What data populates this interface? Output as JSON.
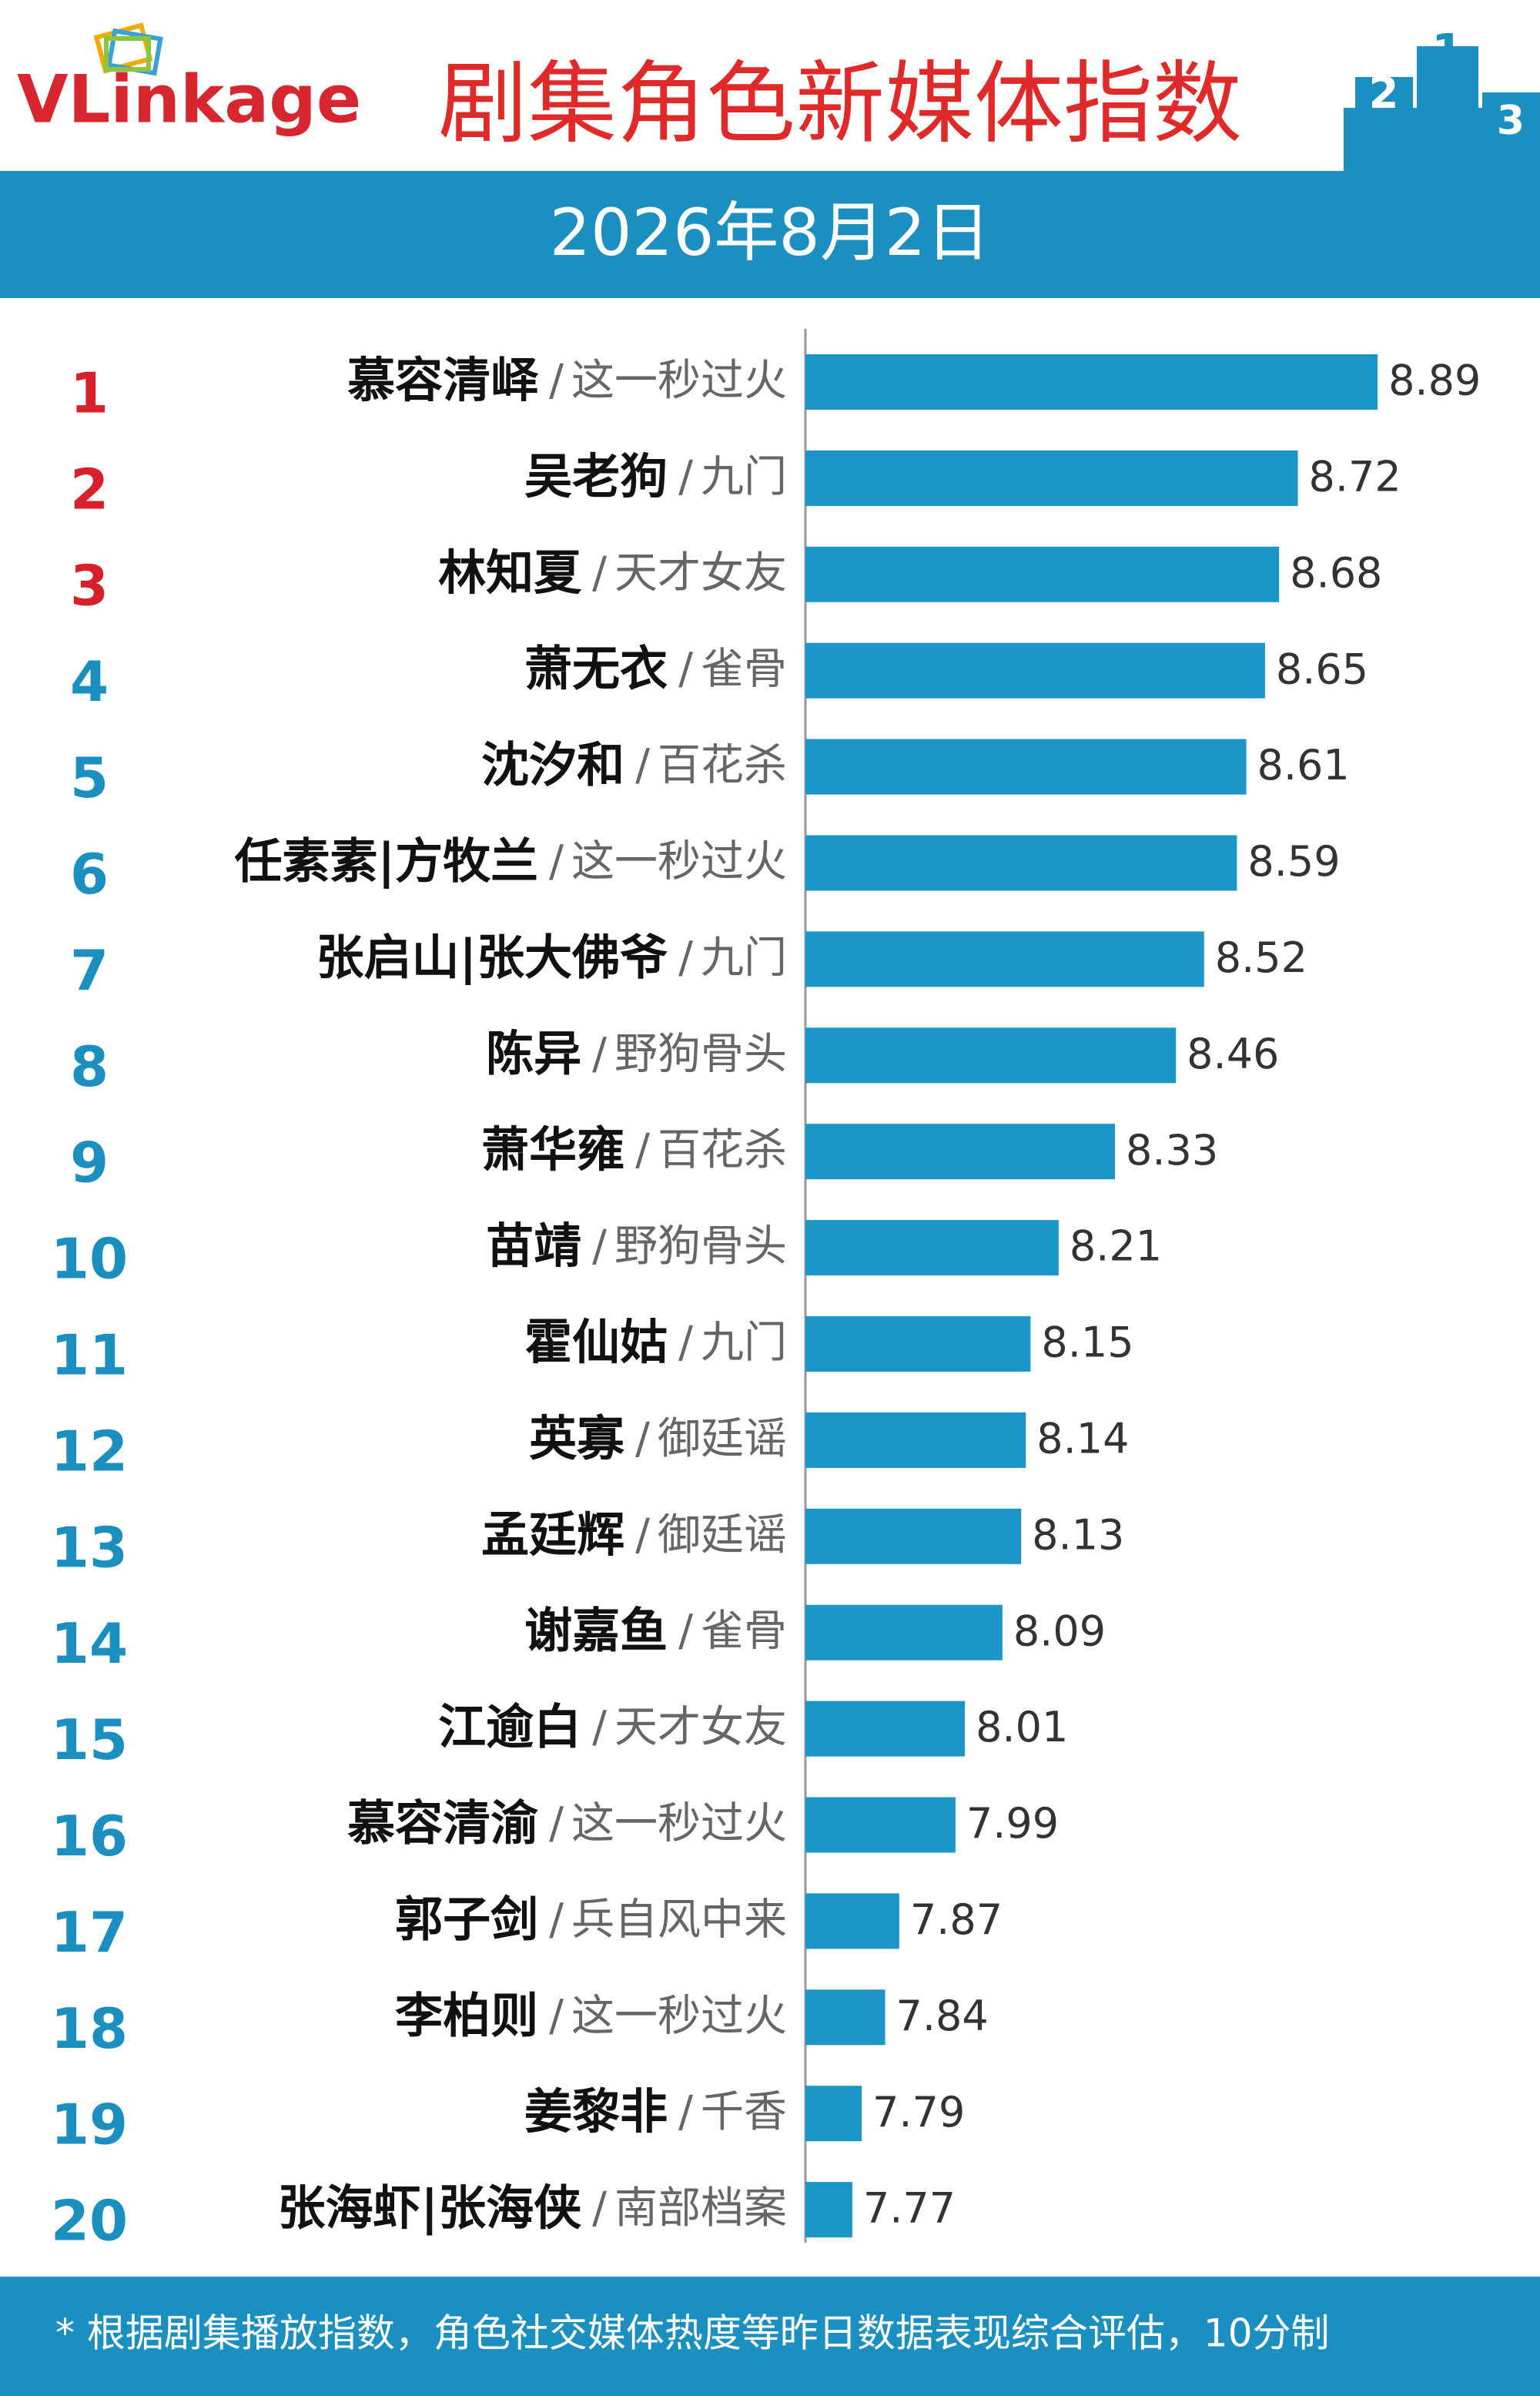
{
  "logo": "VLinkage",
  "podium": [
    "2",
    "1",
    "3"
  ],
  "chart_data": {
    "type": "bar",
    "title": "剧集角色新媒体指数",
    "subtitle": "2026年8月2日",
    "ranks": [
      1,
      2,
      3,
      4,
      5,
      6,
      7,
      8,
      9,
      10,
      11,
      12,
      13,
      14,
      15,
      16,
      17,
      18,
      19,
      20
    ],
    "categories": [
      "慕容清峄",
      "吴老狗",
      "林知夏",
      "萧无衣",
      "沈汐和",
      "任素素|方牧兰",
      "张启山|张大佛爷",
      "陈异",
      "萧华雍",
      "苗靖",
      "霍仙姑",
      "英寡",
      "孟廷辉",
      "谢嘉鱼",
      "江逾白",
      "慕容清渝",
      "郭子剑",
      "李柏则",
      "姜黎非",
      "张海虾|张海侠"
    ],
    "separator": "/",
    "shows": [
      "这一秒过火",
      "九门",
      "天才女友",
      "雀骨",
      "百花杀",
      "这一秒过火",
      "九门",
      "野狗骨头",
      "百花杀",
      "野狗骨头",
      "九门",
      "御廷谣",
      "御廷谣",
      "雀骨",
      "天才女友",
      "这一秒过火",
      "兵自风中来",
      "这一秒过火",
      "千香",
      "南部档案"
    ],
    "values": [
      8.89,
      8.72,
      8.68,
      8.65,
      8.61,
      8.59,
      8.52,
      8.46,
      8.33,
      8.21,
      8.15,
      8.14,
      8.13,
      8.09,
      8.01,
      7.99,
      7.87,
      7.84,
      7.79,
      7.77
    ],
    "xlim": [
      7.67,
      9.21
    ],
    "color": "#1a96c8",
    "top_n": 3,
    "top_rank_color": "#d9202a",
    "rank_color": "#1a8fc0"
  },
  "footnote": "* 根据剧集播放指数，角色社交媒体热度等昨日数据表现综合评估，10分制"
}
